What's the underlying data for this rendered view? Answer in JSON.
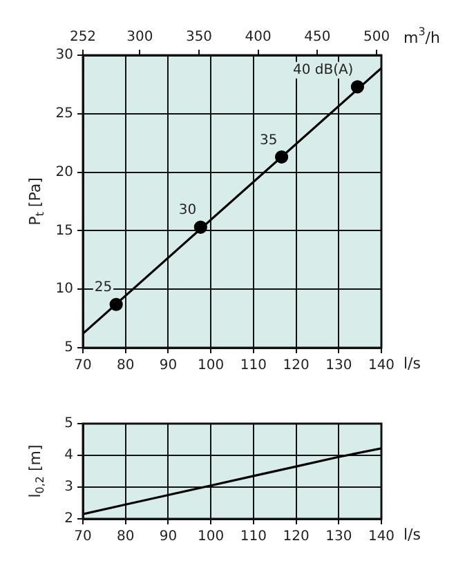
{
  "chart_data": [
    {
      "type": "line",
      "xlabel": "l/s",
      "ylabel": "P$_{t}$ [Pa]",
      "x2label": "m$^{3}$/h",
      "xlim": [
        70,
        140
      ],
      "xticks": [
        70,
        80,
        90,
        100,
        110,
        120,
        130,
        140
      ],
      "ylim": [
        5,
        30
      ],
      "yticks": [
        5,
        10,
        15,
        20,
        25,
        30
      ],
      "x2lim": [
        252,
        504
      ],
      "x2ticks": [
        252,
        300,
        350,
        400,
        450,
        500
      ],
      "grid": true,
      "legend": false,
      "annotations": [
        {
          "text": "25",
          "x": 77.8,
          "y": 8.7
        },
        {
          "text": "30",
          "x": 97.6,
          "y": 15.3
        },
        {
          "text": "35",
          "x": 116.6,
          "y": 21.3
        },
        {
          "text": "40 dB(A)",
          "x": 134.4,
          "y": 27.3
        }
      ],
      "series": [
        {
          "color": "#000000",
          "marker": "none",
          "x": [
            70,
            140
          ],
          "values": [
            6.2,
            28.9
          ]
        },
        {
          "type": "scatter",
          "color": "#000000",
          "marker": "circle",
          "x": [
            77.8,
            97.6,
            116.6,
            134.4
          ],
          "values": [
            8.7,
            15.3,
            21.3,
            27.3
          ]
        }
      ]
    },
    {
      "type": "line",
      "xlabel": "l/s",
      "ylabel": "l$_{0,2}$ [m]",
      "xlim": [
        70,
        140
      ],
      "xticks": [
        70,
        80,
        90,
        100,
        110,
        120,
        130,
        140
      ],
      "ylim": [
        2,
        5
      ],
      "yticks": [
        2,
        3,
        4,
        5
      ],
      "grid": true,
      "legend": false,
      "series": [
        {
          "color": "#000000",
          "marker": "none",
          "x": [
            70,
            80,
            90,
            100,
            110,
            120,
            130,
            140
          ],
          "values": [
            2.15,
            2.45,
            2.75,
            3.05,
            3.35,
            3.65,
            3.95,
            4.22
          ]
        }
      ]
    }
  ]
}
